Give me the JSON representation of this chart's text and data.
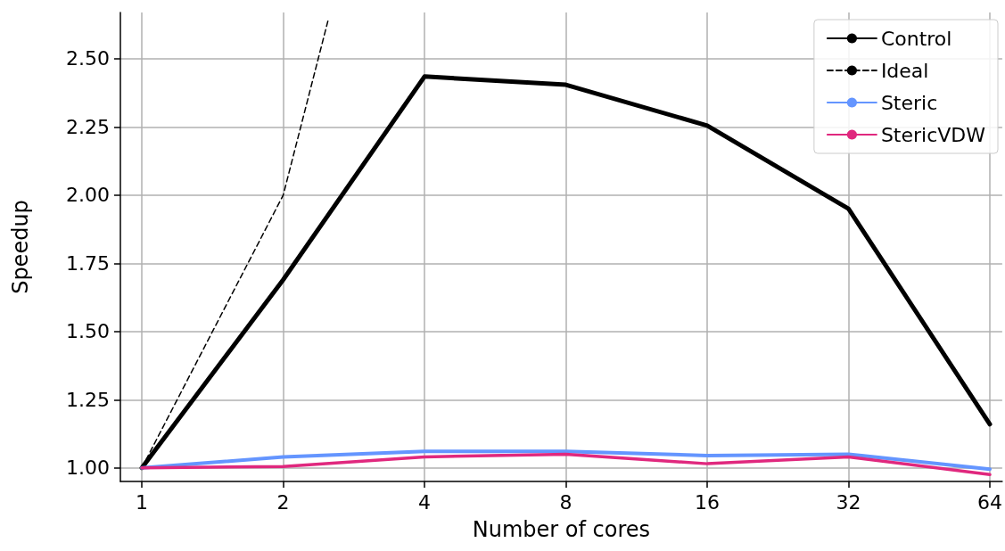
{
  "chart_data": {
    "type": "line",
    "xlabel": "Number of cores",
    "ylabel": "Speedup",
    "x": [
      1,
      2,
      4,
      8,
      16,
      32,
      64
    ],
    "series": [
      {
        "name": "Control",
        "color": "#000000",
        "values": [
          1.0,
          1.69,
          2.435,
          2.405,
          2.255,
          1.95,
          1.16
        ]
      },
      {
        "name": "Ideal",
        "color": "#000000",
        "line_style": "dashed",
        "x": [
          1,
          2,
          2.5
        ],
        "values": [
          1.0,
          2.0,
          2.65
        ]
      },
      {
        "name": "Steric",
        "color": "#6495ff",
        "values": [
          1.0,
          1.04,
          1.06,
          1.06,
          1.045,
          1.05,
          0.995
        ]
      },
      {
        "name": "StericVDW",
        "color": "#e0287e",
        "values": [
          1.0,
          1.005,
          1.04,
          1.05,
          1.015,
          1.04,
          0.975
        ]
      }
    ],
    "log": "x",
    "xlim": [
      0.9,
      68
    ],
    "xticks": [
      1,
      2,
      4,
      8,
      16,
      32,
      64
    ],
    "ylim": [
      0.95,
      2.67
    ],
    "yticks": [
      {
        "value": 1,
        "label": "1.00"
      },
      {
        "value": 1.25,
        "label": "1.25"
      },
      {
        "value": 1.5,
        "label": "1.50"
      },
      {
        "value": 1.75,
        "label": "1.75"
      },
      {
        "value": 2,
        "label": "2.00"
      },
      {
        "value": 2.25,
        "label": "2.25"
      },
      {
        "value": 2.5,
        "label": "2.50"
      }
    ],
    "grid": true,
    "legend": "top right",
    "marker": "none",
    "line_style": "solid"
  }
}
